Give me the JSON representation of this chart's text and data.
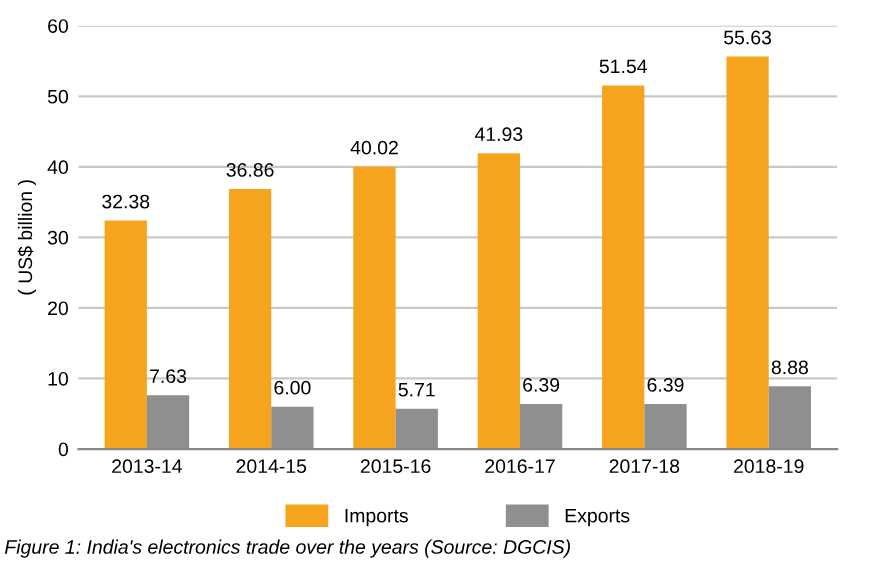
{
  "chart_data": {
    "type": "bar",
    "ylabel": "( US$ billion )",
    "categories": [
      "2013-14",
      "2014-15",
      "2015-16",
      "2016-17",
      "2017-18",
      "2018-19"
    ],
    "series": [
      {
        "name": "Imports",
        "color": "#f6a41e",
        "values": [
          32.38,
          36.86,
          40.02,
          41.93,
          51.54,
          55.63
        ]
      },
      {
        "name": "Exports",
        "color": "#8f8f8f",
        "values": [
          7.63,
          6.0,
          5.71,
          6.39,
          6.39,
          8.88
        ]
      }
    ],
    "value_labels": [
      [
        "32.38",
        "36.86",
        "40.02",
        "41.93",
        "51.54",
        "55.63"
      ],
      [
        "7.63",
        "6.00",
        "5.71",
        "6.39",
        "6.39",
        "8.88"
      ]
    ],
    "ylim": [
      0,
      60
    ],
    "yticks": [
      0,
      10,
      20,
      30,
      40,
      50,
      60
    ],
    "grid": "y",
    "legend": "bottom",
    "annotations": [
      "Figure 1: India's electronics trade over the years (Source: DGCIS)"
    ]
  }
}
